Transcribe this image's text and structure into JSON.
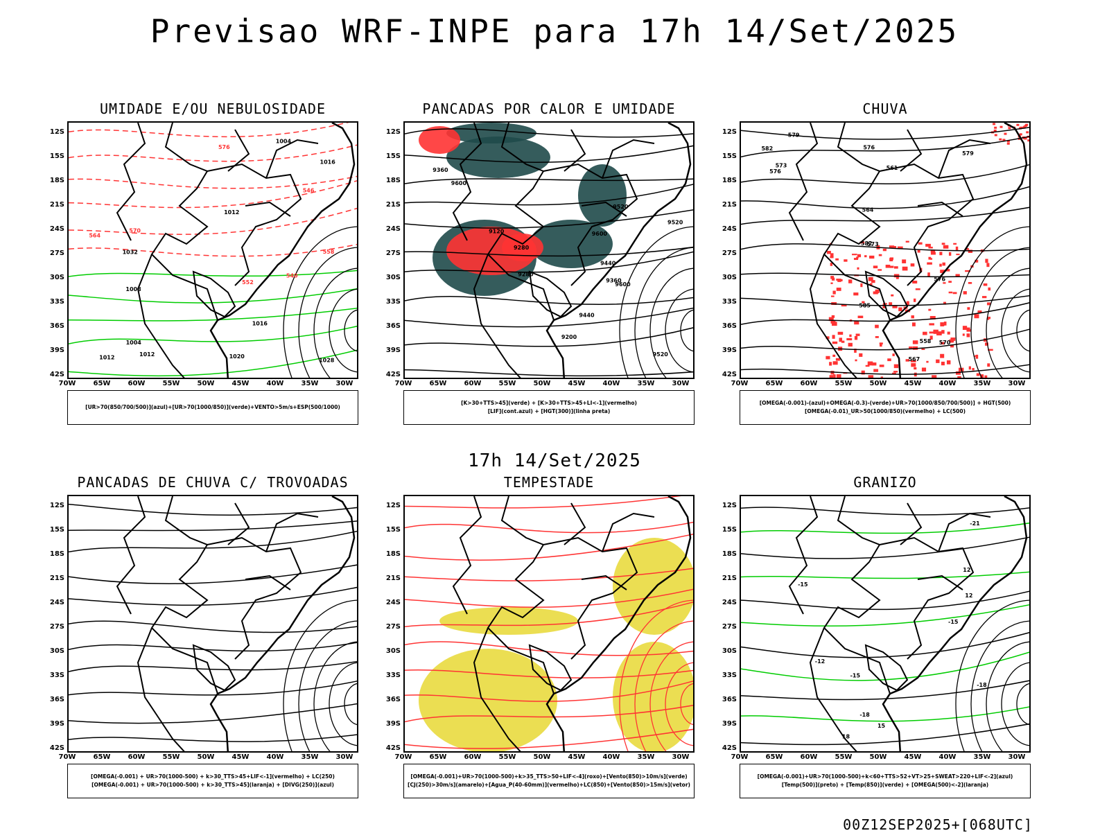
{
  "header": {
    "title": "Previsao WRF-INPE  para 17h 14/Set/2025"
  },
  "middle": {
    "title": "17h 14/Set/2025"
  },
  "footer": {
    "run": "00Z12SEP2025+[068UTC]"
  },
  "axes": {
    "lat_ticks": [
      "12S",
      "15S",
      "18S",
      "21S",
      "24S",
      "27S",
      "30S",
      "33S",
      "36S",
      "39S",
      "42S"
    ],
    "lon_ticks": [
      "70W",
      "65W",
      "60W",
      "55W",
      "50W",
      "45W",
      "40W",
      "35W",
      "30W"
    ]
  },
  "panels": [
    {
      "id": "umidade",
      "title": "UMIDADE E/OU NEBULOSIDADE",
      "legend": [
        "[UR>70(850/700/500)](azul)+[UR>70(1000/850)](verde)+VENTO>5m/s+ESP(500/1000)"
      ],
      "contour_labels": [
        "1004",
        "1008",
        "1012",
        "1004",
        "1012",
        "1016",
        "1020",
        "1016",
        "1012",
        "1028",
        "1032",
        "576",
        "570",
        "564",
        "558",
        "552",
        "546",
        "540"
      ],
      "colors": {
        "primary": "#ff3333",
        "secondary": "#00cc00",
        "tertiary": "#8888ff"
      }
    },
    {
      "id": "pancadas-calor",
      "title": "PANCADAS POR CALOR E UMIDADE",
      "legend": [
        "[K>30+TTS>45](verde) + [K>30+TTS>45+LI<-1](vermelho)",
        "[LIF](cont.azul) + [HGT(300)](linha preta)"
      ],
      "contour_labels": [
        "9600",
        "9600",
        "9600",
        "9520",
        "9520",
        "9520",
        "9440",
        "9440",
        "9360",
        "9360",
        "9280",
        "9280",
        "9200",
        "9120"
      ],
      "colors": {
        "primary": "#ff3333",
        "secondary": "#1f4a4a",
        "tertiary": "#2233ff"
      }
    },
    {
      "id": "chuva",
      "title": "CHUVA",
      "legend": [
        "[OMEGA(-0.001)-(azul)+OMEGA(-0.3)-(verde)+UR>70(1000/850/700/500)] + HGT(500)",
        "[OMEGA(-0.01)_UR>50(1000/850)(vermelho) + LC(500)"
      ],
      "contour_labels": [
        "582",
        "582",
        "579",
        "579",
        "576",
        "576",
        "573",
        "573",
        "570",
        "567",
        "564",
        "561",
        "558",
        "576",
        "585"
      ],
      "colors": {
        "primary": "#ff3333",
        "secondary": "#00cc00",
        "tertiary": "#2233ff"
      }
    },
    {
      "id": "trovoadas",
      "title": "PANCADAS DE CHUVA C/ TROVOADAS",
      "legend": [
        "[OMEGA(-0.001) + UR>70(1000-500) + k>30_TTS>45+LIF<-1](vermelho) + LC(250)",
        "[OMEGA(-0.001) + UR>70(1000-500) + k>30_TTS>45](laranja) + [DIVG(250)](azul)"
      ],
      "contour_labels": [],
      "colors": {
        "primary": "#2244ff",
        "secondary": "#ff8800",
        "tertiary": "#ff3333"
      }
    },
    {
      "id": "tempestade",
      "title": "TEMPESTADE",
      "legend": [
        "[OMEGA(-0.001)+UR>70(1000-500)+k>35_TTS>50+LIF<-4](roxo)+[Vento(850)>10m/s](verde)",
        "[CJ(250)>30m/s](amarelo)+[Agua_P(40-60mm)](vermelho)+LC(850)+[Vento(850)>15m/s](vetor)"
      ],
      "contour_labels": [],
      "colors": {
        "primary": "#ff3333",
        "secondary": "#e8d834",
        "tertiary": "#00cc00"
      }
    },
    {
      "id": "granizo",
      "title": "GRANIZO",
      "legend": [
        "[OMEGA(-0.001)+UR>70(1000-500)+k<60+TTS>52+VT>25+SWEAT>220+LIF<-2](azul)",
        "[Temp(500)](preto) + [Temp(850)](verde) + [OMEGA(500)<-2](laranja)"
      ],
      "contour_labels": [
        "-12",
        "-15",
        "-15",
        "-18",
        "-18",
        "-15",
        "-21",
        "12",
        "12",
        "15",
        "18"
      ],
      "colors": {
        "primary": "#00cc00",
        "secondary": "#ff8800",
        "tertiary": "#000000"
      }
    }
  ]
}
